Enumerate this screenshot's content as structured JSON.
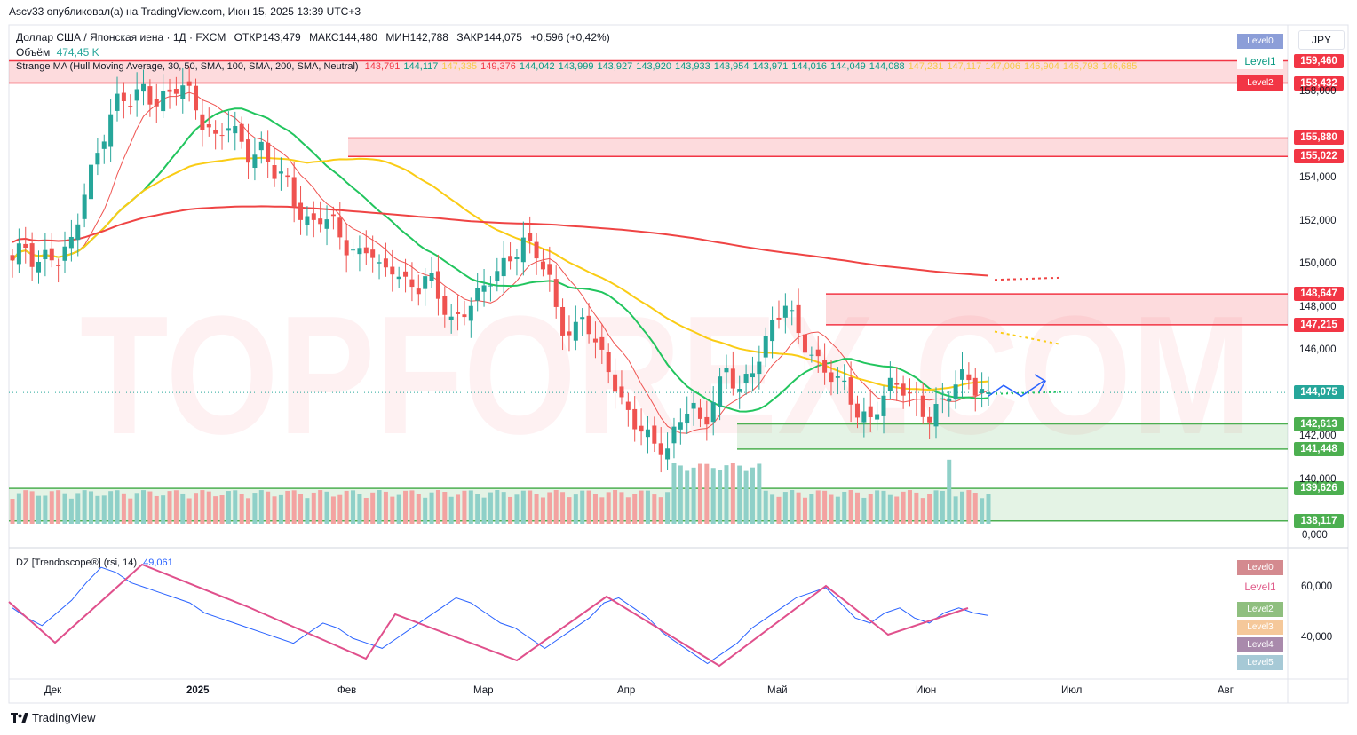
{
  "header": {
    "published": "Ascv33 опубликовал(а) на TradingView.com, Июн 15, 2025 13:39 UTC+3",
    "instrument": "Доллар США / Японская иена · 1Д · FXCM",
    "open": "ОТКР143,479",
    "high": "МАКС144,480",
    "low": "МИН142,788",
    "close": "ЗАКР144,075",
    "change": "+0,596 (+0,42%)",
    "volume_label": "Объём",
    "volume_value": "474,45 K",
    "indicator_name": "Strange MA (Hull Moving Average, 30, 50, SMA, 100, SMA, 200, SMA, Neutral)",
    "currency": "JPY",
    "rsi_name": "DZ [Trendoscope®] (rsi, 14)",
    "rsi_value": "49,061",
    "brand": "TradingView"
  },
  "indicator_values": [
    {
      "v": "143,791",
      "c": "#f23645"
    },
    {
      "v": "144,117",
      "c": "#089981"
    },
    {
      "v": "147,335",
      "c": "#f7c948"
    },
    {
      "v": "149,376",
      "c": "#f23645"
    },
    {
      "v": "144,042",
      "c": "#089981"
    },
    {
      "v": "143,999",
      "c": "#089981"
    },
    {
      "v": "143,927",
      "c": "#089981"
    },
    {
      "v": "143,920",
      "c": "#089981"
    },
    {
      "v": "143,933",
      "c": "#089981"
    },
    {
      "v": "143,954",
      "c": "#089981"
    },
    {
      "v": "143,971",
      "c": "#089981"
    },
    {
      "v": "144,016",
      "c": "#089981"
    },
    {
      "v": "144,049",
      "c": "#089981"
    },
    {
      "v": "144,088",
      "c": "#089981"
    },
    {
      "v": "147,231",
      "c": "#f7c948"
    },
    {
      "v": "147,117",
      "c": "#f7c948"
    },
    {
      "v": "147,006",
      "c": "#f7c948"
    },
    {
      "v": "146,904",
      "c": "#f7c948"
    },
    {
      "v": "146,793",
      "c": "#f7c948"
    },
    {
      "v": "146,685",
      "c": "#f7c948"
    }
  ],
  "price_tags": [
    {
      "label": "159,460",
      "price": 159.46,
      "color": "#f23645"
    },
    {
      "label": "158,432",
      "price": 158.432,
      "color": "#f23645"
    },
    {
      "label": "155,880",
      "price": 155.88,
      "color": "#f23645"
    },
    {
      "label": "155,022",
      "price": 155.022,
      "color": "#f23645"
    },
    {
      "label": "148,647",
      "price": 148.647,
      "color": "#f23645"
    },
    {
      "label": "147,215",
      "price": 147.215,
      "color": "#f23645"
    },
    {
      "label": "144,075",
      "price": 144.075,
      "color": "#26a69a"
    },
    {
      "label": "142,613",
      "price": 142.613,
      "color": "#4caf50"
    },
    {
      "label": "141,448",
      "price": 141.448,
      "color": "#4caf50"
    },
    {
      "label": "139,626",
      "price": 139.626,
      "color": "#4caf50"
    },
    {
      "label": "138,117",
      "price": 138.117,
      "color": "#4caf50"
    }
  ],
  "price_axis": [
    {
      "label": "158,000",
      "price": 158
    },
    {
      "label": "154,000",
      "price": 154
    },
    {
      "label": "152,000",
      "price": 152
    },
    {
      "label": "150,000",
      "price": 150
    },
    {
      "label": "148,000",
      "price": 148
    },
    {
      "label": "146,000",
      "price": 146
    },
    {
      "label": "142,000",
      "price": 142
    },
    {
      "label": "140,000",
      "price": 140
    }
  ],
  "volume_axis": [
    {
      "label": "0,000",
      "y": 604
    }
  ],
  "rsi_axis": [
    {
      "label": "60,000",
      "value": 60
    },
    {
      "label": "40,000",
      "value": 40
    }
  ],
  "x_axis": [
    {
      "label": "Дек",
      "x": 62
    },
    {
      "label": "2025",
      "x": 222
    },
    {
      "label": "Фев",
      "x": 392
    },
    {
      "label": "Мар",
      "x": 545
    },
    {
      "label": "Апр",
      "x": 707
    },
    {
      "label": "Май",
      "x": 876
    },
    {
      "label": "Июн",
      "x": 1043
    },
    {
      "label": "Июл",
      "x": 1207
    },
    {
      "label": "Авг",
      "x": 1383
    }
  ],
  "levels_top": [
    {
      "label": "Level0",
      "color": "#8c9ed8",
      "y": 38
    },
    {
      "label": "Level1",
      "color": "#ffffff",
      "text": "#089981",
      "y": 61
    },
    {
      "label": "Level2",
      "color": "#f23645",
      "y": 85
    }
  ],
  "levels_rsi": [
    {
      "label": "Level0",
      "color": "#d48a8f",
      "y": 631
    },
    {
      "label": "Level1",
      "color": "#ffffff",
      "text": "#e05b8a",
      "y": 653
    },
    {
      "label": "Level2",
      "color": "#8fbf7f",
      "y": 678
    },
    {
      "label": "Level3",
      "color": "#f5c89a",
      "y": 698
    },
    {
      "label": "Level4",
      "color": "#a98aac",
      "y": 718
    },
    {
      "label": "Level5",
      "color": "#a6c9d6",
      "y": 738
    }
  ],
  "watermark": "TOPFOREX.COM",
  "chart_data": {
    "type": "candlestick",
    "symbol": "USDJPY",
    "timeframe": "1D",
    "ylim": [
      139.0,
      160.0
    ],
    "x": [
      "Дек",
      "2025",
      "Фев",
      "Мар",
      "Апр",
      "Май",
      "Июн",
      "Июл",
      "Авг"
    ],
    "close_path": [
      150.2,
      151.0,
      149.8,
      150.6,
      150.1,
      151.2,
      153.2,
      155.0,
      156.5,
      157.9,
      157.6,
      158.2,
      157.4,
      157.9,
      158.4,
      157.9,
      156.5,
      155.8,
      156.6,
      155.9,
      154.9,
      155.4,
      154.3,
      154.0,
      152.4,
      151.8,
      152.3,
      151.9,
      150.8,
      150.4,
      150.9,
      149.6,
      149.9,
      149.1,
      148.9,
      149.6,
      148.3,
      147.2,
      147.9,
      148.5,
      149.3,
      149.8,
      150.4,
      151.1,
      150.6,
      149.5,
      147.2,
      146.6,
      147.8,
      146.2,
      145.4,
      143.7,
      142.9,
      142.2,
      141.7,
      141.3,
      142.8,
      143.6,
      142.4,
      143.9,
      145.2,
      144.1,
      144.9,
      146.1,
      147.4,
      148.3,
      146.8,
      145.9,
      145.2,
      144.8,
      144.3,
      143.1,
      142.7,
      143.8,
      144.6,
      144.2,
      143.4,
      142.9,
      143.5,
      144.4,
      144.9,
      144.2,
      144.075
    ],
    "resistance_zones": [
      [
        158.432,
        159.46
      ],
      [
        155.022,
        155.88
      ],
      [
        147.215,
        148.647
      ]
    ],
    "support_zones": [
      [
        141.448,
        142.613
      ],
      [
        138.117,
        139.626
      ]
    ],
    "last_price": 144.075,
    "rsi_series": [
      52,
      48,
      45,
      50,
      55,
      62,
      68,
      66,
      62,
      60,
      58,
      56,
      54,
      50,
      48,
      46,
      44,
      42,
      40,
      38,
      42,
      46,
      44,
      40,
      38,
      36,
      40,
      44,
      48,
      52,
      56,
      54,
      50,
      46,
      44,
      40,
      36,
      40,
      44,
      48,
      54,
      56,
      52,
      48,
      42,
      38,
      34,
      30,
      34,
      38,
      44,
      48,
      52,
      56,
      58,
      60,
      54,
      48,
      46,
      50,
      52,
      48,
      46,
      50,
      52,
      50,
      49
    ]
  },
  "colors": {
    "up": "#26a69a",
    "down": "#ef5350",
    "hma": "#ef5350",
    "sma50": "#22c55e",
    "sma100": "#facc15",
    "sma200": "#ef4444",
    "zone_red": "rgba(242,54,69,0.18)",
    "zone_green": "rgba(76,175,80,0.15)",
    "rsi_line": "#2962ff",
    "zigzag": "#e0508c"
  }
}
